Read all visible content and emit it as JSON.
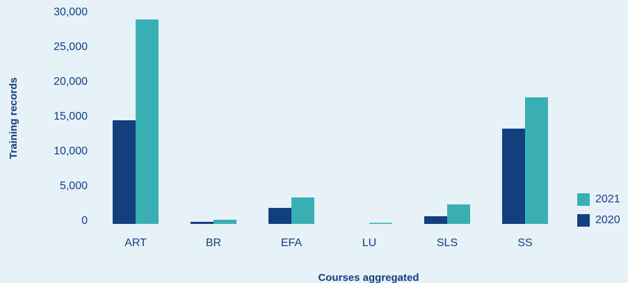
{
  "chart_data": {
    "type": "bar",
    "x_label": "Courses aggregated",
    "y_label": "Training records",
    "categories": [
      "ART",
      "BR",
      "EFA",
      "LU",
      "SLS",
      "SS"
    ],
    "series": [
      {
        "name": "2020",
        "color": "#12407f",
        "values": [
          14900,
          300,
          2300,
          0,
          1100,
          13700
        ]
      },
      {
        "name": "2021",
        "color": "#3aafb3",
        "values": [
          29400,
          600,
          3800,
          150,
          2800,
          18200
        ]
      }
    ],
    "ylim": [
      0,
      30000
    ],
    "yticks": [
      0,
      {
        "value": 5000,
        "label": "5,000"
      },
      {
        "value": 10000,
        "label": "10,000"
      },
      {
        "value": 15000,
        "label": "15,000"
      },
      {
        "value": 20000,
        "label": "20,000"
      },
      {
        "value": 25000,
        "label": "25,000"
      },
      {
        "value": 30000,
        "label": "30,000"
      }
    ],
    "grid": false,
    "legend": "right"
  }
}
